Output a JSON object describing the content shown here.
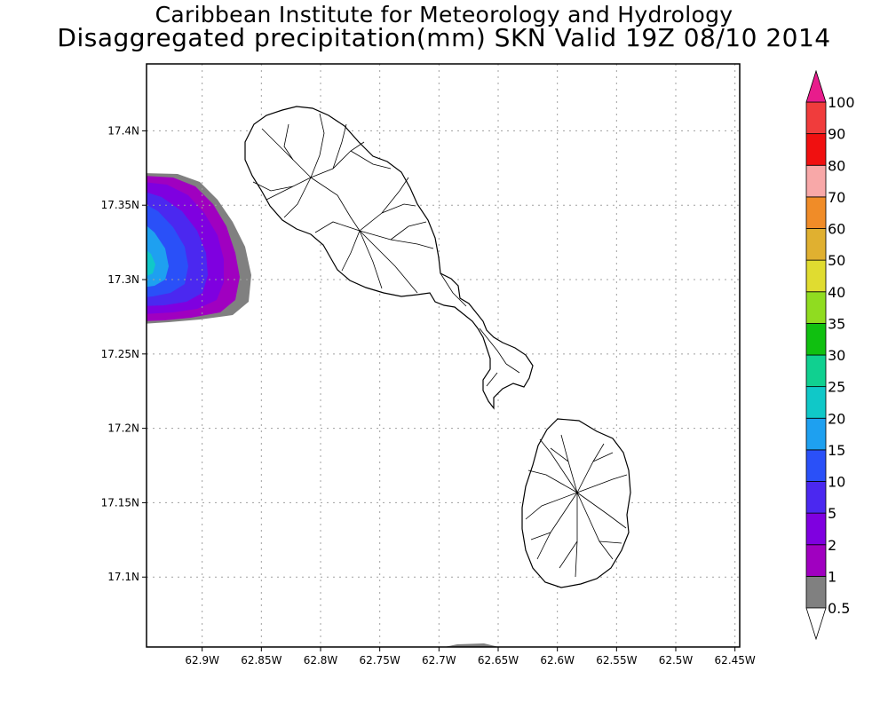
{
  "title": "Caribbean Institute for Meteorology and Hydrology",
  "subtitle": "Disaggregated precipitation(mm) SKN Valid 19Z 08/10 2014",
  "map": {
    "x_ticks": [
      {
        "lon": -62.9,
        "label": "62.9W"
      },
      {
        "lon": -62.85,
        "label": "62.85W"
      },
      {
        "lon": -62.8,
        "label": "62.8W"
      },
      {
        "lon": -62.75,
        "label": "62.75W"
      },
      {
        "lon": -62.7,
        "label": "62.7W"
      },
      {
        "lon": -62.65,
        "label": "62.65W"
      },
      {
        "lon": -62.6,
        "label": "62.6W"
      },
      {
        "lon": -62.55,
        "label": "62.55W"
      },
      {
        "lon": -62.5,
        "label": "62.5W"
      },
      {
        "lon": -62.45,
        "label": "62.45W"
      }
    ],
    "y_ticks": [
      {
        "lat": 17.4,
        "label": "17.4N"
      },
      {
        "lat": 17.35,
        "label": "17.35N"
      },
      {
        "lat": 17.3,
        "label": "17.3N"
      },
      {
        "lat": 17.25,
        "label": "17.25N"
      },
      {
        "lat": 17.2,
        "label": "17.2N"
      },
      {
        "lat": 17.15,
        "label": "17.15N"
      },
      {
        "lat": 17.1,
        "label": "17.1N"
      }
    ],
    "lon_range": [
      -62.947,
      -62.446
    ],
    "lat_range": [
      17.053,
      17.445
    ],
    "grid": true
  },
  "legend": {
    "placement": "right",
    "bins": [
      {
        "label": "0.5",
        "color": "#808080"
      },
      {
        "label": "1",
        "color": "#a000c0"
      },
      {
        "label": "2",
        "color": "#7f00e0"
      },
      {
        "label": "5",
        "color": "#4b28f0"
      },
      {
        "label": "10",
        "color": "#2a50f8"
      },
      {
        "label": "15",
        "color": "#1ea0f0"
      },
      {
        "label": "20",
        "color": "#10c8c8"
      },
      {
        "label": "25",
        "color": "#10d090"
      },
      {
        "label": "30",
        "color": "#10c010"
      },
      {
        "label": "35",
        "color": "#90dc20"
      },
      {
        "label": "40",
        "color": "#e0dc30"
      },
      {
        "label": "50",
        "color": "#e0b030"
      },
      {
        "label": "60",
        "color": "#f08c28"
      },
      {
        "label": "70",
        "color": "#f8a8a8"
      },
      {
        "label": "80",
        "color": "#f01010"
      },
      {
        "label": "90",
        "color": "#f03c3c"
      }
    ],
    "top_label": "100",
    "top_color": "#e81c8c",
    "bottom_label": "0.5"
  }
}
